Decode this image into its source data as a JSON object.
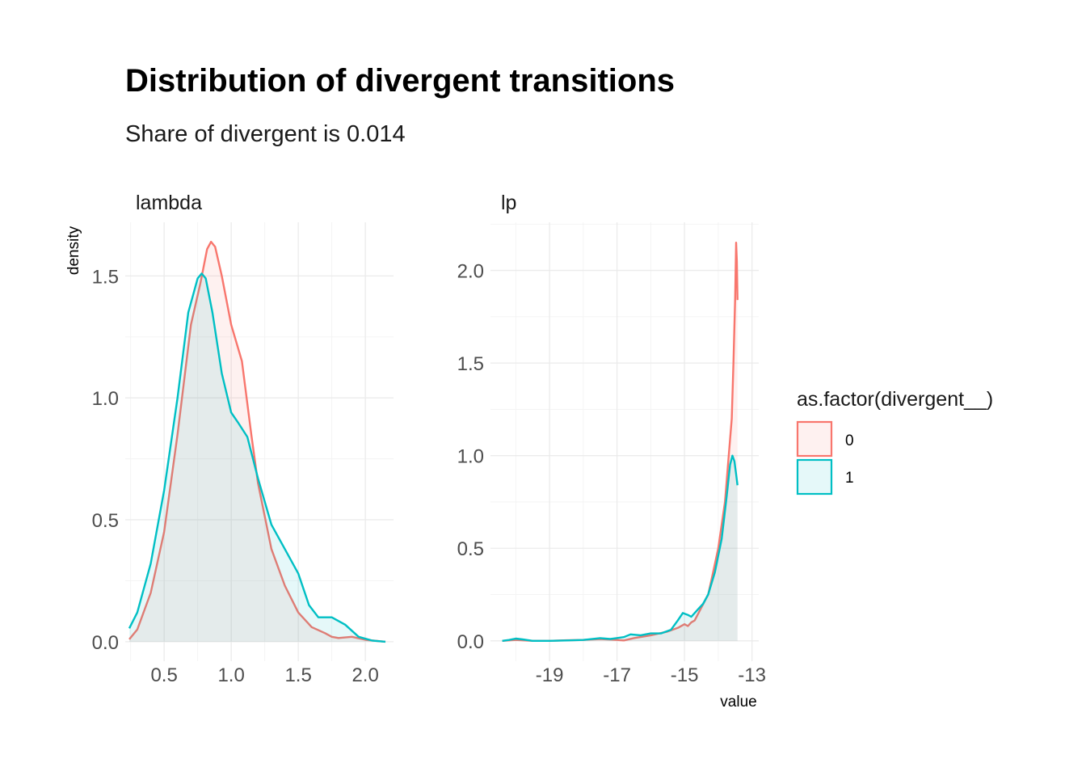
{
  "chart_data": {
    "type": "area",
    "title": "Distribution of divergent transitions",
    "subtitle": "Share of divergent is  0.014",
    "xlabel": "value",
    "ylabel": "density",
    "grid": true,
    "legend": {
      "title": "as.factor(divergent__)",
      "placement": "right",
      "entries": [
        {
          "label": "0",
          "color": "#F8766D"
        },
        {
          "label": "1",
          "color": "#00BFC4"
        }
      ]
    },
    "panels": [
      {
        "strip": "lambda",
        "xlim": [
          0.21,
          2.21
        ],
        "ylim": [
          -0.08,
          1.72
        ],
        "x_ticks": [
          0.5,
          1.0,
          1.5,
          2.0
        ],
        "x_tick_labels": [
          "0.5",
          "1.0",
          "1.5",
          "2.0"
        ],
        "y_ticks": [
          0.0,
          0.5,
          1.0,
          1.5
        ],
        "y_tick_labels": [
          "0.0",
          "0.5",
          "1.0",
          "1.5"
        ],
        "series": [
          {
            "name": "0",
            "color": "#F8766D",
            "points": [
              [
                0.24,
                0.01
              ],
              [
                0.3,
                0.05
              ],
              [
                0.4,
                0.2
              ],
              [
                0.5,
                0.45
              ],
              [
                0.6,
                0.85
              ],
              [
                0.7,
                1.3
              ],
              [
                0.77,
                1.47
              ],
              [
                0.82,
                1.61
              ],
              [
                0.85,
                1.64
              ],
              [
                0.88,
                1.62
              ],
              [
                0.93,
                1.5
              ],
              [
                1.0,
                1.3
              ],
              [
                1.08,
                1.15
              ],
              [
                1.15,
                0.85
              ],
              [
                1.2,
                0.65
              ],
              [
                1.3,
                0.38
              ],
              [
                1.4,
                0.23
              ],
              [
                1.5,
                0.12
              ],
              [
                1.6,
                0.06
              ],
              [
                1.7,
                0.035
              ],
              [
                1.75,
                0.02
              ],
              [
                1.8,
                0.015
              ],
              [
                1.9,
                0.02
              ],
              [
                2.0,
                0.008
              ],
              [
                2.15,
                0.0
              ]
            ]
          },
          {
            "name": "1",
            "color": "#00BFC4",
            "points": [
              [
                0.24,
                0.055
              ],
              [
                0.3,
                0.12
              ],
              [
                0.4,
                0.32
              ],
              [
                0.5,
                0.62
              ],
              [
                0.6,
                1.0
              ],
              [
                0.68,
                1.35
              ],
              [
                0.75,
                1.49
              ],
              [
                0.78,
                1.51
              ],
              [
                0.81,
                1.49
              ],
              [
                0.86,
                1.35
              ],
              [
                0.93,
                1.1
              ],
              [
                1.0,
                0.94
              ],
              [
                1.05,
                0.9
              ],
              [
                1.12,
                0.84
              ],
              [
                1.2,
                0.67
              ],
              [
                1.3,
                0.48
              ],
              [
                1.4,
                0.38
              ],
              [
                1.5,
                0.28
              ],
              [
                1.58,
                0.15
              ],
              [
                1.65,
                0.1
              ],
              [
                1.75,
                0.1
              ],
              [
                1.85,
                0.07
              ],
              [
                1.95,
                0.02
              ],
              [
                2.05,
                0.005
              ],
              [
                2.15,
                0.0
              ]
            ]
          }
        ]
      },
      {
        "strip": "lp",
        "xlim": [
          -20.75,
          -12.8
        ],
        "ylim": [
          -0.11,
          2.26
        ],
        "x_ticks": [
          -19,
          -17,
          -15,
          -13
        ],
        "x_tick_labels": [
          "-19",
          "-17",
          "-15",
          "-13"
        ],
        "y_ticks": [
          0.0,
          0.5,
          1.0,
          1.5,
          2.0
        ],
        "y_tick_labels": [
          "0.0",
          "0.5",
          "1.0",
          "1.5",
          "2.0"
        ],
        "series": [
          {
            "name": "0",
            "color": "#F8766D",
            "points": [
              [
                -20.4,
                0.0
              ],
              [
                -20.0,
                0.005
              ],
              [
                -19.5,
                0.0
              ],
              [
                -19.0,
                0.0
              ],
              [
                -18.5,
                0.003
              ],
              [
                -18.0,
                0.005
              ],
              [
                -17.5,
                0.01
              ],
              [
                -17.0,
                0.005
              ],
              [
                -16.8,
                0.002
              ],
              [
                -16.5,
                0.015
              ],
              [
                -16.0,
                0.03
              ],
              [
                -15.5,
                0.05
              ],
              [
                -15.2,
                0.07
              ],
              [
                -15.0,
                0.09
              ],
              [
                -14.9,
                0.08
              ],
              [
                -14.8,
                0.1
              ],
              [
                -14.7,
                0.11
              ],
              [
                -14.5,
                0.18
              ],
              [
                -14.3,
                0.25
              ],
              [
                -14.2,
                0.33
              ],
              [
                -14.0,
                0.5
              ],
              [
                -13.8,
                0.75
              ],
              [
                -13.6,
                1.2
              ],
              [
                -13.55,
                1.5
              ],
              [
                -13.5,
                1.85
              ],
              [
                -13.47,
                2.15
              ],
              [
                -13.45,
                2.05
              ],
              [
                -13.43,
                1.84
              ]
            ]
          },
          {
            "name": "1",
            "color": "#00BFC4",
            "points": [
              [
                -20.4,
                0.0
              ],
              [
                -20.2,
                0.005
              ],
              [
                -20.0,
                0.012
              ],
              [
                -19.8,
                0.008
              ],
              [
                -19.5,
                0.0
              ],
              [
                -19.0,
                0.0
              ],
              [
                -18.5,
                0.002
              ],
              [
                -18.0,
                0.005
              ],
              [
                -17.5,
                0.015
              ],
              [
                -17.2,
                0.01
              ],
              [
                -16.8,
                0.02
              ],
              [
                -16.6,
                0.035
              ],
              [
                -16.3,
                0.03
              ],
              [
                -16.0,
                0.04
              ],
              [
                -15.7,
                0.04
              ],
              [
                -15.4,
                0.06
              ],
              [
                -15.2,
                0.11
              ],
              [
                -15.05,
                0.15
              ],
              [
                -14.9,
                0.14
              ],
              [
                -14.8,
                0.13
              ],
              [
                -14.6,
                0.17
              ],
              [
                -14.45,
                0.2
              ],
              [
                -14.3,
                0.25
              ],
              [
                -14.1,
                0.37
              ],
              [
                -13.9,
                0.55
              ],
              [
                -13.75,
                0.78
              ],
              [
                -13.65,
                0.95
              ],
              [
                -13.58,
                1.0
              ],
              [
                -13.52,
                0.97
              ],
              [
                -13.47,
                0.9
              ],
              [
                -13.43,
                0.84
              ]
            ]
          }
        ]
      }
    ]
  }
}
